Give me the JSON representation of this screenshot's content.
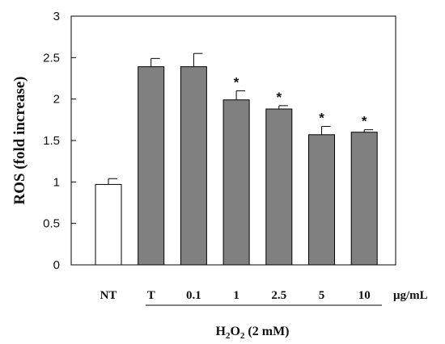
{
  "chart_data": {
    "type": "bar",
    "categories": [
      "NT",
      "T",
      "0.1",
      "1",
      "2.5",
      "5",
      "10"
    ],
    "values": [
      0.97,
      2.39,
      2.39,
      1.99,
      1.88,
      1.57,
      1.6
    ],
    "errors": [
      0.07,
      0.1,
      0.16,
      0.11,
      0.04,
      0.1,
      0.03
    ],
    "significant": [
      false,
      false,
      false,
      true,
      true,
      true,
      true
    ],
    "significance_marker": "*",
    "bar_colors": [
      "#ffffff",
      "#808080",
      "#808080",
      "#808080",
      "#808080",
      "#808080",
      "#808080"
    ],
    "ylabel": "ROS (fold increase)",
    "xunit": "μg/mL",
    "treatment": {
      "main": "H",
      "sub": "2",
      "rest1": "O",
      "sub2": "2",
      "rest2": " (2 mM)"
    },
    "ylim": [
      0,
      3
    ],
    "yticks": [
      "0",
      "0.5",
      "1",
      "1.5",
      "2",
      "2.5",
      "3"
    ],
    "grid": false
  }
}
